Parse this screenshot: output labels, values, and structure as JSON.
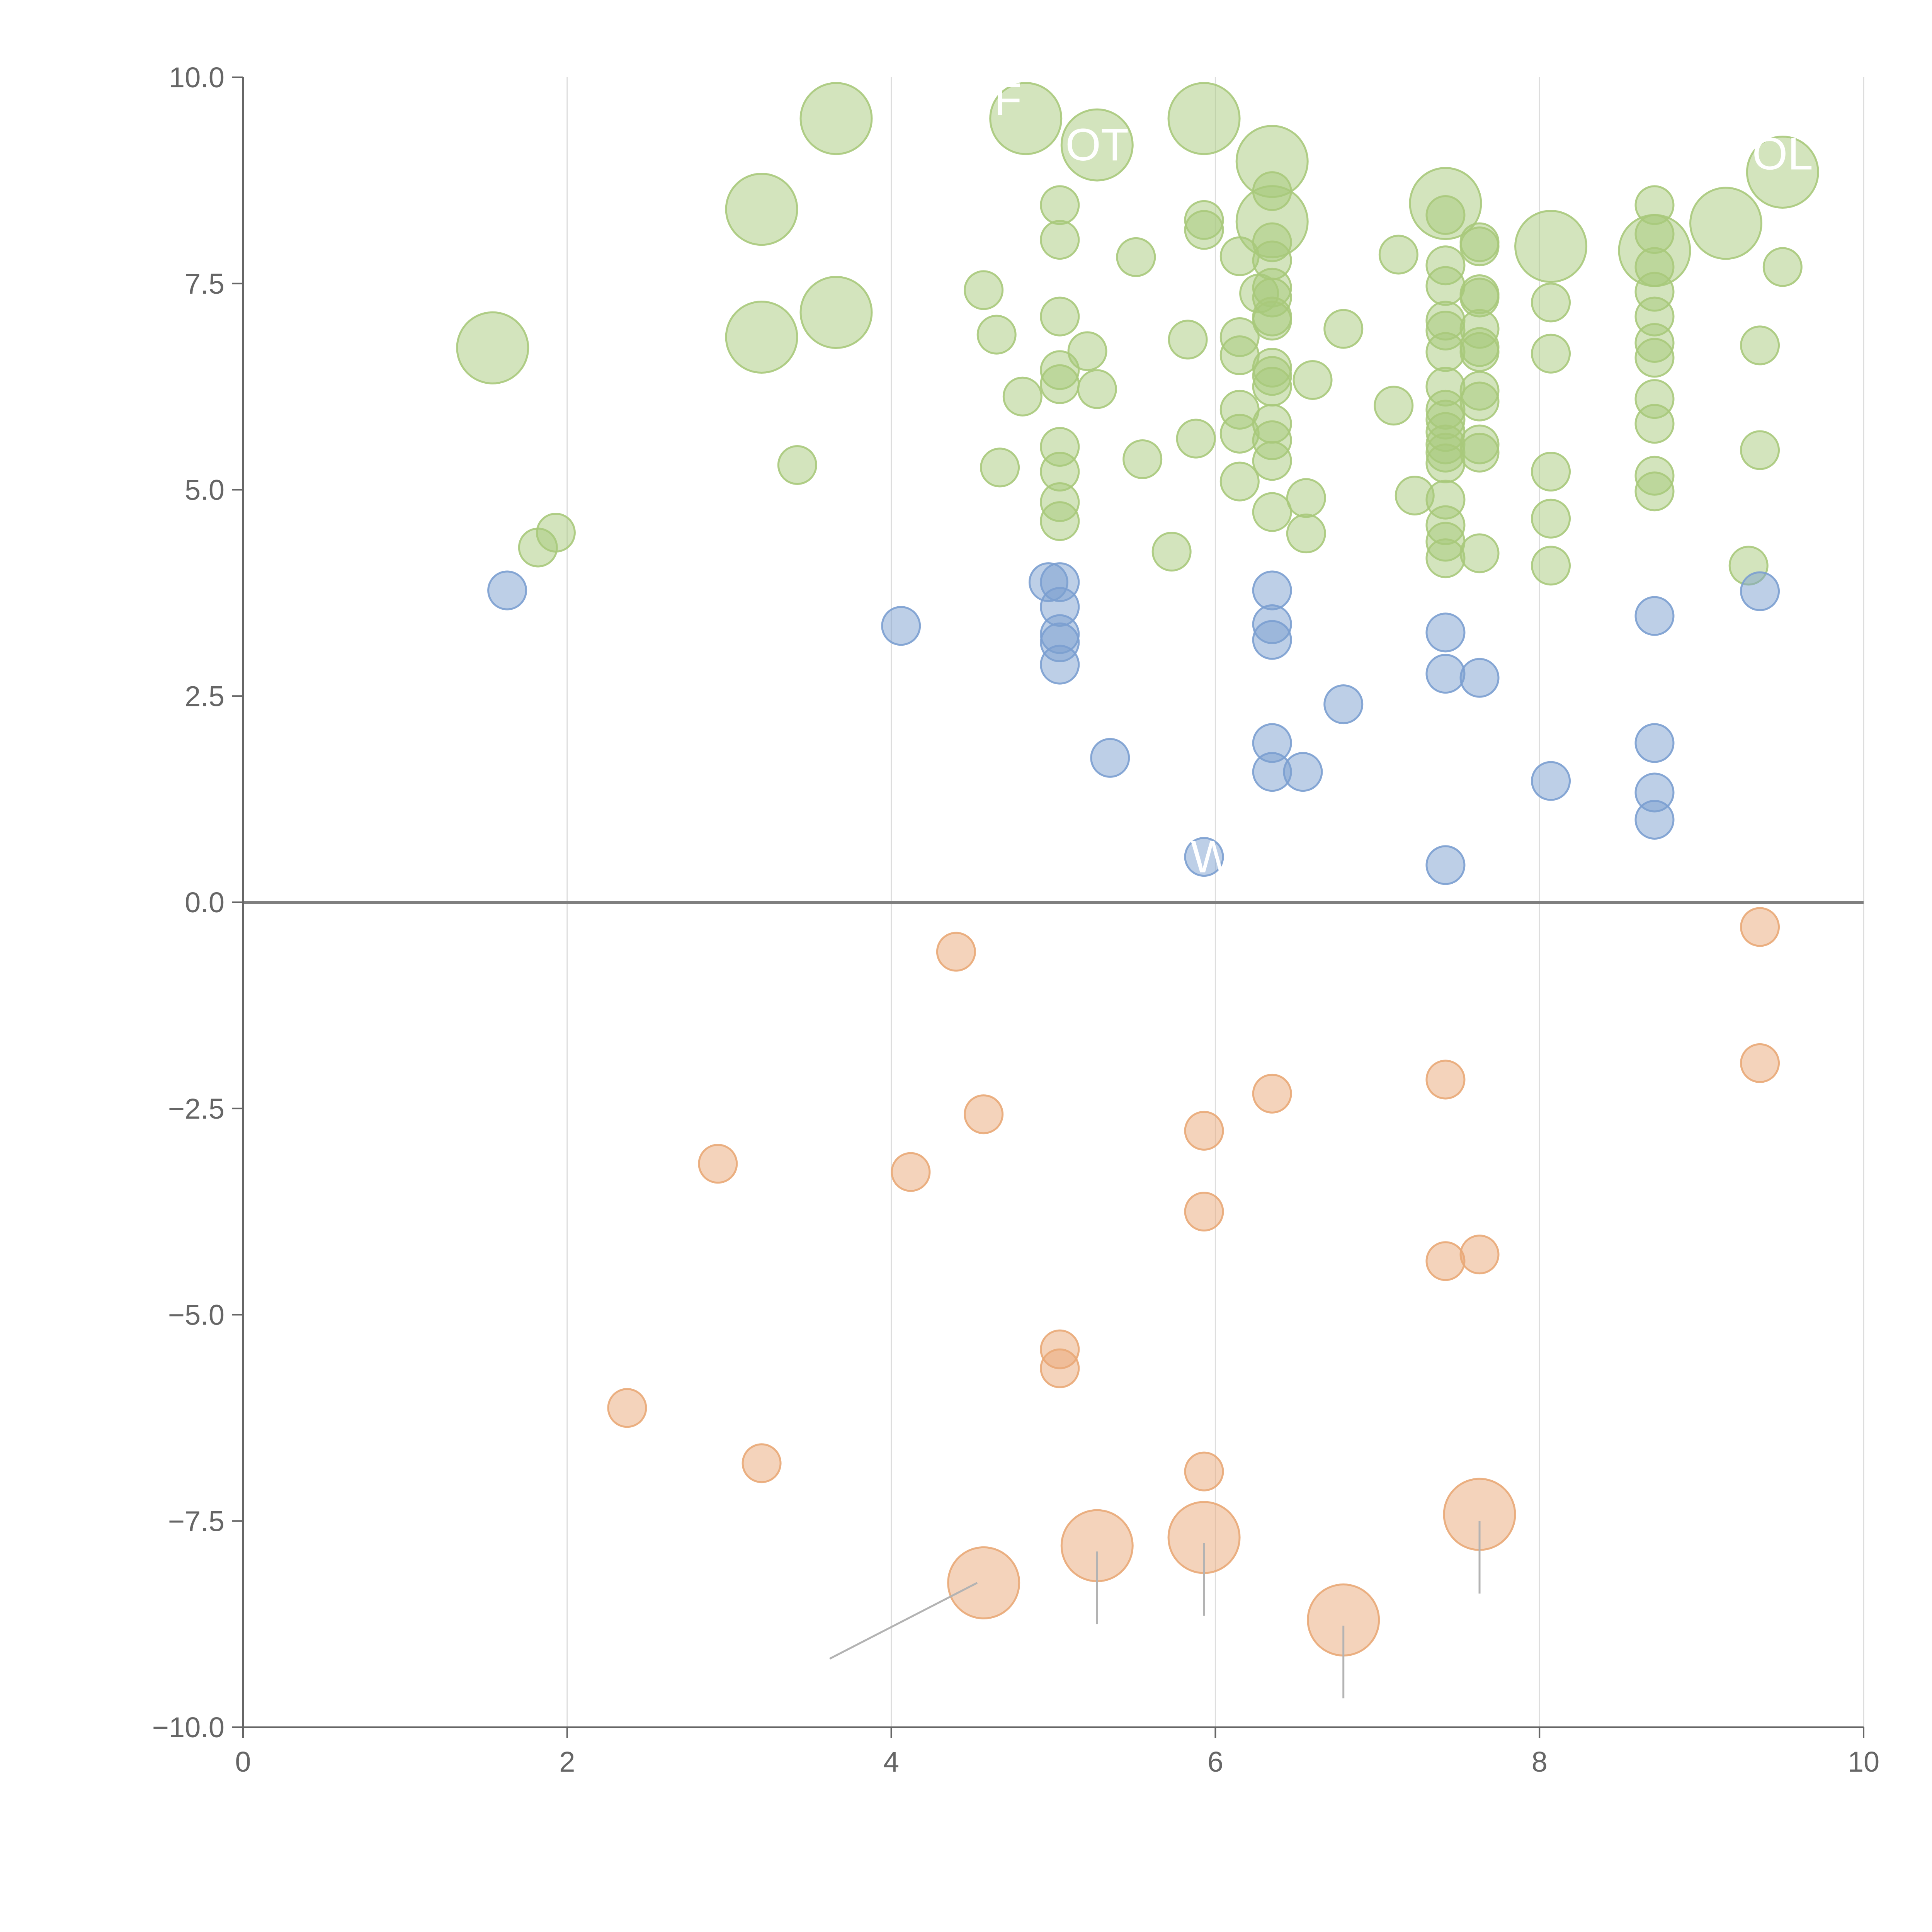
{
  "chart_data": {
    "type": "scatter",
    "title": "",
    "xlabel": "",
    "ylabel": "",
    "xlim": [
      0,
      10
    ],
    "ylim": [
      -10,
      10
    ],
    "x_ticks": [
      0,
      2,
      4,
      6,
      8,
      10
    ],
    "x_tick_labels": [
      "0",
      "2",
      "4",
      "6",
      "8",
      "10"
    ],
    "y_ticks": [
      10,
      7.5,
      5,
      2.5,
      0,
      -2.5,
      -5,
      -7.5,
      -10
    ],
    "y_tick_labels": [
      "10.0",
      "7.5",
      "5.0",
      "2.5",
      "0.0",
      "−2.5",
      "−5.0",
      "−7.5",
      "−10.0"
    ],
    "vertical_grid": true,
    "zero_line": true,
    "legend": "none",
    "colors": {
      "high": "#a8c97b",
      "mid": "#7b9fd0",
      "negative": "#e9a877",
      "axis": "#666666",
      "grid": "#dddddd",
      "zero_line": "#7f7f7f",
      "leader": "#b3b3b3"
    },
    "series": [
      {
        "color": "#a8c97b",
        "points": [
          [
            1.54,
            6.72,
            3
          ],
          [
            3.66,
            9.5,
            3
          ],
          [
            4.83,
            9.5,
            3
          ],
          [
            5.27,
            9.18,
            3
          ],
          [
            5.93,
            9.5,
            3
          ],
          [
            6.35,
            8.98,
            3
          ],
          [
            3.2,
            8.4,
            3
          ],
          [
            3.66,
            7.15,
            3
          ],
          [
            3.2,
            6.85,
            3
          ],
          [
            6.35,
            8.25,
            3
          ],
          [
            7.42,
            8.47,
            3
          ],
          [
            8.07,
            7.95,
            3
          ],
          [
            8.71,
            7.9,
            3
          ],
          [
            9.15,
            8.23,
            3
          ],
          [
            9.5,
            8.85,
            3
          ],
          [
            1.82,
            4.3,
            1
          ],
          [
            1.93,
            4.48,
            1
          ],
          [
            3.42,
            5.3,
            1
          ],
          [
            4.57,
            7.42,
            1
          ],
          [
            4.65,
            6.88,
            1
          ],
          [
            4.67,
            5.27,
            1
          ],
          [
            4.81,
            6.13,
            1
          ],
          [
            5.04,
            8.45,
            1
          ],
          [
            5.04,
            8.03,
            1
          ],
          [
            5.04,
            7.1,
            1
          ],
          [
            5.04,
            6.45,
            1
          ],
          [
            5.04,
            6.28,
            1
          ],
          [
            5.04,
            5.52,
            1
          ],
          [
            5.04,
            5.22,
            1
          ],
          [
            5.04,
            4.85,
            1
          ],
          [
            5.04,
            4.62,
            1
          ],
          [
            5.21,
            6.68,
            1
          ],
          [
            5.27,
            6.22,
            1
          ],
          [
            5.51,
            7.82,
            1
          ],
          [
            5.55,
            5.37,
            1
          ],
          [
            5.73,
            4.25,
            1
          ],
          [
            5.83,
            6.82,
            1
          ],
          [
            5.88,
            5.62,
            1
          ],
          [
            5.93,
            8.27,
            1
          ],
          [
            5.93,
            8.15,
            1
          ],
          [
            6.15,
            7.83,
            1
          ],
          [
            6.15,
            6.85,
            1
          ],
          [
            6.15,
            6.63,
            1
          ],
          [
            6.15,
            5.97,
            1
          ],
          [
            6.15,
            5.68,
            1
          ],
          [
            6.15,
            5.1,
            1
          ],
          [
            6.27,
            7.38,
            1
          ],
          [
            6.35,
            8.62,
            1
          ],
          [
            6.35,
            8.0,
            1
          ],
          [
            6.35,
            7.78,
            1
          ],
          [
            6.35,
            7.45,
            1
          ],
          [
            6.35,
            7.33,
            1
          ],
          [
            6.35,
            7.1,
            1
          ],
          [
            6.35,
            7.05,
            1
          ],
          [
            6.35,
            6.48,
            1
          ],
          [
            6.35,
            6.38,
            1
          ],
          [
            6.35,
            6.25,
            1
          ],
          [
            6.35,
            5.8,
            1
          ],
          [
            6.35,
            5.6,
            1
          ],
          [
            6.35,
            5.35,
            1
          ],
          [
            6.35,
            4.73,
            1
          ],
          [
            6.56,
            4.9,
            1
          ],
          [
            6.56,
            4.47,
            1
          ],
          [
            6.6,
            6.33,
            1
          ],
          [
            6.79,
            6.95,
            1
          ],
          [
            7.13,
            7.85,
            1
          ],
          [
            7.1,
            6.02,
            1
          ],
          [
            7.23,
            4.93,
            1
          ],
          [
            7.42,
            8.33,
            1
          ],
          [
            7.42,
            7.72,
            1
          ],
          [
            7.42,
            7.47,
            1
          ],
          [
            7.42,
            7.05,
            1
          ],
          [
            7.42,
            6.93,
            1
          ],
          [
            7.42,
            6.67,
            1
          ],
          [
            7.42,
            6.25,
            1
          ],
          [
            7.42,
            5.97,
            1
          ],
          [
            7.42,
            5.85,
            1
          ],
          [
            7.42,
            5.7,
            1
          ],
          [
            7.42,
            5.55,
            1
          ],
          [
            7.42,
            5.45,
            1
          ],
          [
            7.42,
            5.32,
            1
          ],
          [
            7.42,
            4.88,
            1
          ],
          [
            7.42,
            4.57,
            1
          ],
          [
            7.42,
            4.37,
            1
          ],
          [
            7.42,
            4.17,
            1
          ],
          [
            7.63,
            8.0,
            1
          ],
          [
            7.63,
            7.95,
            1
          ],
          [
            7.63,
            7.37,
            1
          ],
          [
            7.63,
            7.33,
            1
          ],
          [
            7.63,
            6.95,
            1
          ],
          [
            7.63,
            6.73,
            1
          ],
          [
            7.63,
            6.67,
            1
          ],
          [
            7.63,
            6.2,
            1
          ],
          [
            7.63,
            6.07,
            1
          ],
          [
            7.63,
            5.55,
            1
          ],
          [
            7.63,
            5.45,
            1
          ],
          [
            7.63,
            4.23,
            1
          ],
          [
            8.07,
            7.27,
            1
          ],
          [
            8.07,
            6.65,
            1
          ],
          [
            8.07,
            5.22,
            1
          ],
          [
            8.07,
            4.65,
            1
          ],
          [
            8.07,
            4.08,
            1
          ],
          [
            8.71,
            8.45,
            1
          ],
          [
            8.71,
            8.1,
            1
          ],
          [
            8.71,
            7.7,
            1
          ],
          [
            8.71,
            7.4,
            1
          ],
          [
            8.71,
            7.1,
            1
          ],
          [
            8.71,
            6.78,
            1
          ],
          [
            8.71,
            6.6,
            1
          ],
          [
            8.71,
            6.1,
            1
          ],
          [
            8.71,
            5.8,
            1
          ],
          [
            8.71,
            5.17,
            1
          ],
          [
            8.71,
            4.98,
            1
          ],
          [
            9.29,
            4.08,
            1
          ],
          [
            9.36,
            6.75,
            1
          ],
          [
            9.36,
            5.48,
            1
          ],
          [
            9.5,
            7.7,
            1
          ]
        ]
      },
      {
        "color": "#7b9fd0",
        "points": [
          [
            1.63,
            3.78,
            1
          ],
          [
            4.06,
            3.35,
            1
          ],
          [
            4.97,
            3.88,
            1
          ],
          [
            5.04,
            3.88,
            1
          ],
          [
            5.04,
            3.58,
            1
          ],
          [
            5.04,
            3.25,
            1
          ],
          [
            5.04,
            3.15,
            1
          ],
          [
            5.04,
            2.88,
            1
          ],
          [
            5.35,
            1.75,
            1
          ],
          [
            5.93,
            0.55,
            1
          ],
          [
            6.35,
            3.78,
            1
          ],
          [
            6.35,
            3.37,
            1
          ],
          [
            6.35,
            3.18,
            1
          ],
          [
            6.35,
            1.93,
            1
          ],
          [
            6.35,
            1.58,
            1
          ],
          [
            6.54,
            1.58,
            1
          ],
          [
            6.79,
            2.4,
            1
          ],
          [
            7.42,
            3.27,
            1
          ],
          [
            7.42,
            2.77,
            1
          ],
          [
            7.42,
            0.45,
            1
          ],
          [
            7.63,
            2.72,
            1
          ],
          [
            8.07,
            1.47,
            1
          ],
          [
            8.71,
            3.47,
            1
          ],
          [
            8.71,
            1.93,
            1
          ],
          [
            8.71,
            1.33,
            1
          ],
          [
            8.71,
            1.0,
            1
          ],
          [
            9.36,
            3.77,
            1
          ]
        ]
      },
      {
        "color": "#e9a877",
        "points": [
          [
            2.37,
            -6.13,
            1
          ],
          [
            2.93,
            -3.17,
            1
          ],
          [
            3.2,
            -6.8,
            1
          ],
          [
            4.12,
            -3.27,
            1
          ],
          [
            4.4,
            -0.6,
            1
          ],
          [
            4.57,
            -2.57,
            1
          ],
          [
            5.04,
            -5.42,
            1
          ],
          [
            5.04,
            -5.65,
            1
          ],
          [
            5.93,
            -2.77,
            1
          ],
          [
            5.93,
            -3.75,
            1
          ],
          [
            5.93,
            -6.9,
            1
          ],
          [
            6.35,
            -2.32,
            1
          ],
          [
            7.42,
            -2.15,
            1
          ],
          [
            7.42,
            -4.35,
            1
          ],
          [
            7.63,
            -4.27,
            1
          ],
          [
            9.36,
            -0.3,
            1
          ],
          [
            9.36,
            -1.95,
            1
          ],
          [
            4.57,
            -8.25,
            3
          ],
          [
            5.27,
            -7.8,
            3
          ],
          [
            5.93,
            -7.7,
            3
          ],
          [
            6.79,
            -8.7,
            3
          ],
          [
            7.63,
            -7.42,
            3
          ]
        ]
      }
    ],
    "annotations": [
      {
        "text": "F",
        "x": 4.72,
        "y": 9.73
      },
      {
        "text": "OT",
        "x": 5.27,
        "y": 9.18
      },
      {
        "text": "OL",
        "x": 9.5,
        "y": 9.07
      },
      {
        "text": "W",
        "x": 5.98,
        "y": 0.55
      }
    ],
    "leaders": [
      [
        4.53,
        -8.25,
        3.62,
        -9.17
      ],
      [
        5.27,
        -7.87,
        5.27,
        -8.75
      ],
      [
        5.93,
        -7.77,
        5.93,
        -8.65
      ],
      [
        6.79,
        -8.77,
        6.79,
        -9.65
      ],
      [
        7.63,
        -7.5,
        7.63,
        -8.38
      ]
    ]
  }
}
